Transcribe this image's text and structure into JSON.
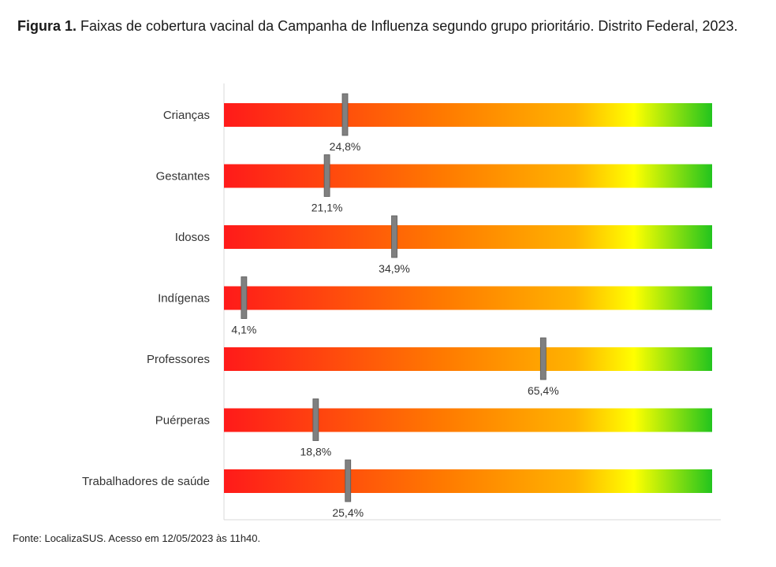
{
  "caption": {
    "bold": "Figura 1.",
    "text": " Faixas de cobertura vacinal da Campanha de Influenza segundo grupo prioritário. Distrito Federal, 2023."
  },
  "source": "Fonte: LocalizaSUS. Acesso em 12/05/2023 às 11h40.",
  "colors": {
    "gradient": [
      "#ff1a1a",
      "#ff7a00",
      "#ffb300",
      "#ffff00",
      "#22c41e"
    ],
    "marker": "#808080"
  },
  "chart_data": {
    "type": "bar",
    "orientation": "horizontal",
    "scale": [
      0,
      100
    ],
    "categories": [
      "Crianças",
      "Gestantes",
      "Idosos",
      "Indígenas",
      "Professores",
      "Puérperas",
      "Trabalhadores de saúde"
    ],
    "values": [
      24.8,
      21.1,
      34.9,
      4.1,
      65.4,
      18.8,
      25.4
    ],
    "value_labels": [
      "24,8%",
      "21,1%",
      "34,9%",
      "4,1%",
      "65,4%",
      "18,8%",
      "25,4%"
    ]
  }
}
